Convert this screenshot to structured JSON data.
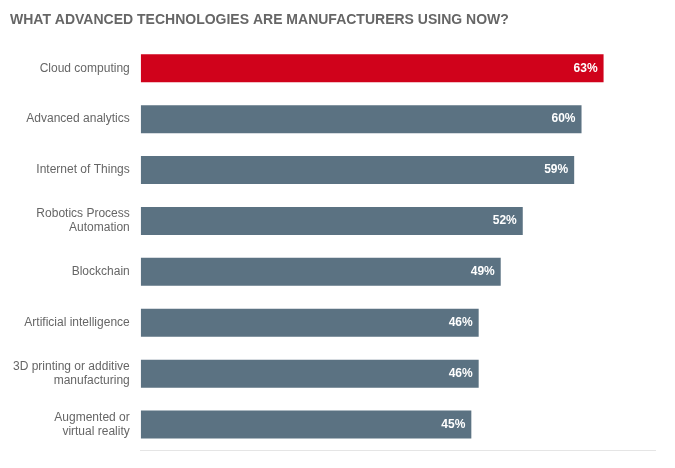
{
  "chart_data": {
    "type": "bar",
    "orientation": "horizontal",
    "title": "WHAT ADVANCED TECHNOLOGIES ARE MANUFACTURERS USING NOW?",
    "categories": [
      "Cloud computing",
      "Advanced analytics",
      "Internet of Things",
      "Robotics Process\nAutomation",
      "Blockchain",
      "Artificial intelligence",
      "3D printing or additive\nmanufacturing",
      "Augmented or\nvirtual reality"
    ],
    "values": [
      63,
      60,
      59,
      52,
      49,
      46,
      46,
      45
    ],
    "value_labels": [
      "63%",
      "60%",
      "59%",
      "52%",
      "49%",
      "46%",
      "46%",
      "45%"
    ],
    "colors": [
      "#d0021b",
      "#5b7282",
      "#5b7282",
      "#5b7282",
      "#5b7282",
      "#5b7282",
      "#5b7282",
      "#5b7282"
    ],
    "xlim": [
      0,
      70
    ],
    "grid": false,
    "data_labels": true,
    "tick_labels": "y"
  }
}
